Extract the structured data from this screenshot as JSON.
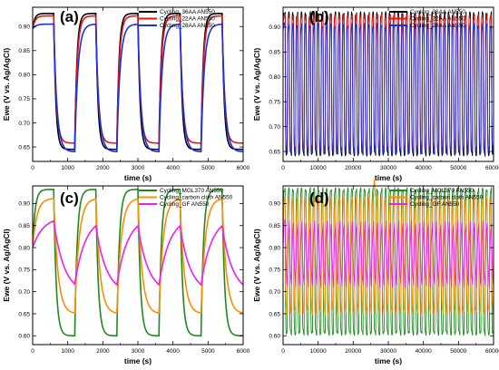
{
  "chart_data": [
    {
      "panel": "(a)",
      "type": "line",
      "xlabel": "time (s)",
      "ylabel": "Ewe (V vs. Ag/AgCl)",
      "xlim": [
        0,
        6000
      ],
      "ylim": [
        0.62,
        0.94
      ],
      "xticks": [
        0,
        1000,
        2000,
        3000,
        4000,
        5000,
        6000
      ],
      "yticks": [
        0.65,
        0.7,
        0.75,
        0.8,
        0.85,
        0.9
      ],
      "legend_position": "top-right",
      "waveform": {
        "period": 1200,
        "high_phase": 600,
        "start_level": 0.895,
        "start_with": "charge"
      },
      "series": [
        {
          "name": "Cycling_36AA AN550",
          "color": "#000000",
          "high": 0.927,
          "low": 0.645,
          "tau": 60
        },
        {
          "name": "Cycling_22AA AN550",
          "color": "#e8141a",
          "high": 0.922,
          "low": 0.658,
          "tau": 70
        },
        {
          "name": "Cycling_28AA AN550",
          "color": "#1c2fe8",
          "high": 0.905,
          "low": 0.64,
          "tau": 90
        }
      ]
    },
    {
      "panel": "(b)",
      "type": "line",
      "xlabel": "time (s)",
      "ylabel": "Ewe (V vs. Ag/AgCl)",
      "xlim": [
        0,
        60000
      ],
      "ylim": [
        0.63,
        0.94
      ],
      "xticks": [
        0,
        10000,
        20000,
        30000,
        40000,
        50000,
        60000
      ],
      "yticks": [
        0.65,
        0.7,
        0.75,
        0.8,
        0.85,
        0.9
      ],
      "legend_position": "top-right",
      "waveform": {
        "period": 1200,
        "high_phase": 600,
        "start_level": 0.895,
        "start_with": "charge"
      },
      "series": [
        {
          "name": "Cycling_36AA AN550",
          "color": "#000000",
          "high": 0.927,
          "low": 0.645,
          "tau": 60
        },
        {
          "name": "Cycling_22AA AN550",
          "color": "#e8141a",
          "high": 0.922,
          "low": 0.655,
          "tau": 70
        },
        {
          "name": "Cycling_28AA AN550",
          "color": "#1c2fe8",
          "high": 0.905,
          "low": 0.648,
          "tau": 90
        }
      ]
    },
    {
      "panel": "(c)",
      "type": "line",
      "xlabel": "time (s)",
      "ylabel": "Ewe (V vs. Ag/AgCl)",
      "xlim": [
        0,
        6000
      ],
      "ylim": [
        0.58,
        0.94
      ],
      "xticks": [
        0,
        1000,
        2000,
        3000,
        4000,
        5000,
        6000
      ],
      "yticks": [
        0.6,
        0.65,
        0.7,
        0.75,
        0.8,
        0.85,
        0.9
      ],
      "legend_position": "top-right",
      "waveform": {
        "period": 1200,
        "high_phase": 600,
        "start_level": 0.8,
        "start_with": "charge"
      },
      "series": [
        {
          "name": "Cycling_MGL370 AN550",
          "color": "#1e8a1e",
          "high": 0.932,
          "low": 0.6,
          "tau": 70
        },
        {
          "name": "Cycling_carbon cloth AN550",
          "color": "#ff8c00",
          "high": 0.912,
          "low": 0.65,
          "tau": 120
        },
        {
          "name": "Cycling_GF AN550",
          "color": "#f01ef0",
          "high": 0.87,
          "low": 0.695,
          "tau": 300
        }
      ]
    },
    {
      "panel": "(d)",
      "type": "line",
      "xlabel": "time (s)",
      "ylabel": "Ewe (V vs. Ag/AgCl)",
      "xlim": [
        0,
        60000
      ],
      "ylim": [
        0.58,
        0.94
      ],
      "xticks": [
        0,
        10000,
        20000,
        30000,
        40000,
        50000,
        60000
      ],
      "yticks": [
        0.6,
        0.65,
        0.7,
        0.75,
        0.8,
        0.85,
        0.9
      ],
      "legend_position": "top-right",
      "waveform": {
        "period": 1200,
        "high_phase": 600,
        "start_level": 0.8,
        "start_with": "charge"
      },
      "series": [
        {
          "name": "Cycling_MGL370 AN550",
          "color": "#1e8a1e",
          "high": 0.932,
          "low": 0.605,
          "tau": 70
        },
        {
          "name": "Cycling_carbon cloth AN550",
          "color": "#ff8c00",
          "high": 0.915,
          "low": 0.65,
          "tau": 120
        },
        {
          "name": "Cycling_GF AN550",
          "color": "#f01ef0",
          "high": 0.88,
          "low": 0.69,
          "tau": 300
        }
      ],
      "annotations": [
        "spike of carbon cloth trace near 26000 s reaching 0.955"
      ]
    }
  ]
}
